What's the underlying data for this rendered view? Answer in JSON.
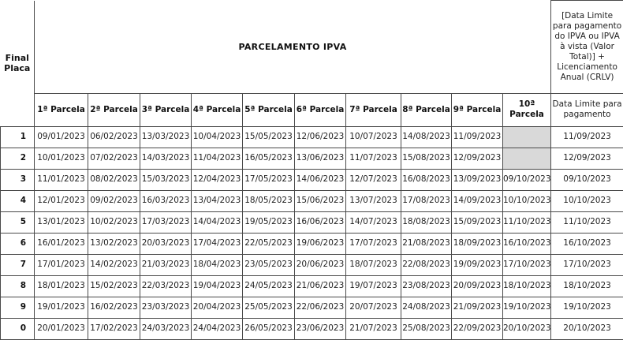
{
  "table": {
    "corner_header": "Final Placa",
    "group_header": "PARCELAMENTO IPVA",
    "right_header": "[Data Limite para pagamento do IPVA ou IPVA à vista (Valor Total)] + Licenciamento Anual (CRLV)",
    "right_subheader": "Data Limite para pagamento",
    "parcel_headers": [
      "1ª Parcela",
      "2ª Parcela",
      "3ª Parcela",
      "4ª Parcela",
      "5ª Parcela",
      "6ª Parcela",
      "7ª Parcela",
      "8ª Parcela",
      "9ª Parcela",
      "10ª Parcela"
    ],
    "empty_cell_color": "#d9d9d9",
    "rows": [
      {
        "final": "1",
        "parcelas": [
          "09/01/2023",
          "06/02/2023",
          "13/03/2023",
          "10/04/2023",
          "15/05/2023",
          "12/06/2023",
          "10/07/2023",
          "14/08/2023",
          "11/09/2023",
          ""
        ],
        "limite": "11/09/2023"
      },
      {
        "final": "2",
        "parcelas": [
          "10/01/2023",
          "07/02/2023",
          "14/03/2023",
          "11/04/2023",
          "16/05/2023",
          "13/06/2023",
          "11/07/2023",
          "15/08/2023",
          "12/09/2023",
          ""
        ],
        "limite": "12/09/2023"
      },
      {
        "final": "3",
        "parcelas": [
          "11/01/2023",
          "08/02/2023",
          "15/03/2023",
          "12/04/2023",
          "17/05/2023",
          "14/06/2023",
          "12/07/2023",
          "16/08/2023",
          "13/09/2023",
          "09/10/2023"
        ],
        "limite": "09/10/2023"
      },
      {
        "final": "4",
        "parcelas": [
          "12/01/2023",
          "09/02/2023",
          "16/03/2023",
          "13/04/2023",
          "18/05/2023",
          "15/06/2023",
          "13/07/2023",
          "17/08/2023",
          "14/09/2023",
          "10/10/2023"
        ],
        "limite": "10/10/2023"
      },
      {
        "final": "5",
        "parcelas": [
          "13/01/2023",
          "10/02/2023",
          "17/03/2023",
          "14/04/2023",
          "19/05/2023",
          "16/06/2023",
          "14/07/2023",
          "18/08/2023",
          "15/09/2023",
          "11/10/2023"
        ],
        "limite": "11/10/2023"
      },
      {
        "final": "6",
        "parcelas": [
          "16/01/2023",
          "13/02/2023",
          "20/03/2023",
          "17/04/2023",
          "22/05/2023",
          "19/06/2023",
          "17/07/2023",
          "21/08/2023",
          "18/09/2023",
          "16/10/2023"
        ],
        "limite": "16/10/2023"
      },
      {
        "final": "7",
        "parcelas": [
          "17/01/2023",
          "14/02/2023",
          "21/03/2023",
          "18/04/2023",
          "23/05/2023",
          "20/06/2023",
          "18/07/2023",
          "22/08/2023",
          "19/09/2023",
          "17/10/2023"
        ],
        "limite": "17/10/2023"
      },
      {
        "final": "8",
        "parcelas": [
          "18/01/2023",
          "15/02/2023",
          "22/03/2023",
          "19/04/2023",
          "24/05/2023",
          "21/06/2023",
          "19/07/2023",
          "23/08/2023",
          "20/09/2023",
          "18/10/2023"
        ],
        "limite": "18/10/2023"
      },
      {
        "final": "9",
        "parcelas": [
          "19/01/2023",
          "16/02/2023",
          "23/03/2023",
          "20/04/2023",
          "25/05/2023",
          "22/06/2023",
          "20/07/2023",
          "24/08/2023",
          "21/09/2023",
          "19/10/2023"
        ],
        "limite": "19/10/2023"
      },
      {
        "final": "0",
        "parcelas": [
          "20/01/2023",
          "17/02/2023",
          "24/03/2023",
          "24/04/2023",
          "26/05/2023",
          "23/06/2023",
          "21/07/2023",
          "25/08/2023",
          "22/09/2023",
          "20/10/2023"
        ],
        "limite": "20/10/2023"
      }
    ]
  }
}
